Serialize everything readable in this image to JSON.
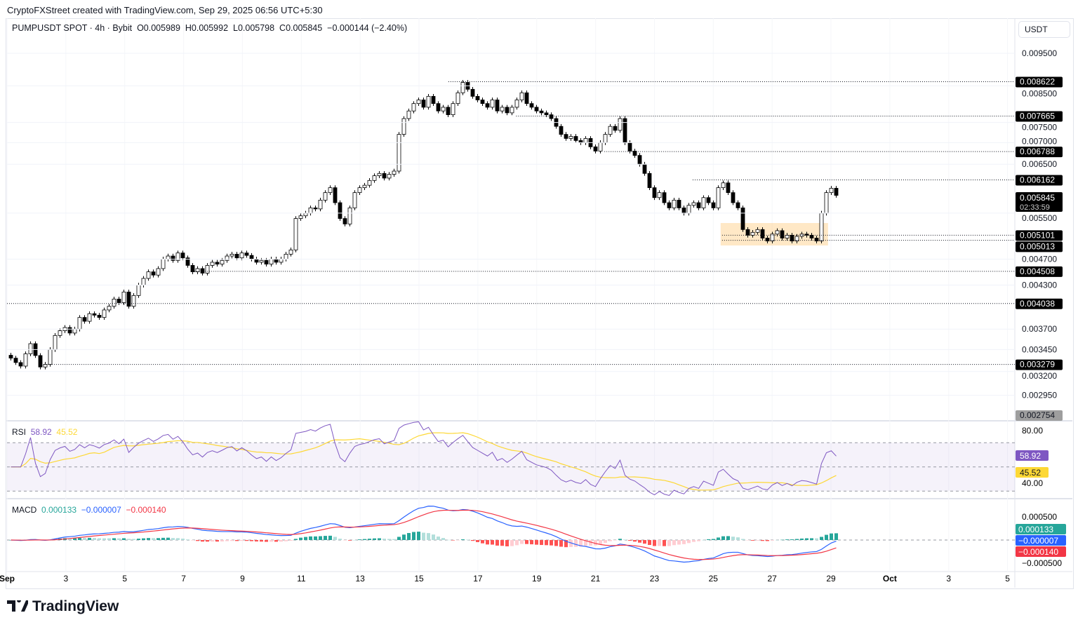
{
  "credit": "CryptoFXStreet created with TradingView.com, Sep 29, 2025 06:56 UTC+5:30",
  "legend": {
    "symbol": "PUMPUSDT SPOT · 4h · Bybit",
    "open": "O0.005989",
    "high": "H0.005992",
    "low": "L0.005798",
    "close": "C0.005845",
    "change": "−0.000144 (−2.40%)"
  },
  "currency": "USDT",
  "price_axis": {
    "scale": "log",
    "ticks": [
      "0.009500",
      "0.008500",
      "0.007500",
      "0.007000",
      "0.006500",
      "0.005500",
      "0.004700",
      "0.004300",
      "0.003700",
      "0.003450",
      "0.003200",
      "0.002950"
    ]
  },
  "levels": [
    {
      "value": 0.008622,
      "label": "0.008622"
    },
    {
      "value": 0.007665,
      "label": "0.007665"
    },
    {
      "value": 0.006788,
      "label": "0.006788"
    },
    {
      "value": 0.006162,
      "label": "0.006162"
    },
    {
      "value": 0.005101,
      "label": "0.005101"
    },
    {
      "value": 0.005013,
      "label": "0.005013"
    },
    {
      "value": 0.004508,
      "label": "0.004508"
    },
    {
      "value": 0.004038,
      "label": "0.004038"
    },
    {
      "value": 0.003279,
      "label": "0.003279"
    }
  ],
  "last_price": {
    "label": "0.005845",
    "countdown": "02:33:59"
  },
  "low_marker": "0.002754",
  "consolidation_zone": {
    "top": 0.005101,
    "bottom": 0.005013,
    "color": "#ffcc80"
  },
  "colors": {
    "up": "#ffffff",
    "down": "#000000",
    "rsi": "#7e57c2",
    "rsi_ma": "#fdd835",
    "macd": "#2962ff",
    "signal": "#f23645",
    "hist_up": "#26a69a",
    "hist_down": "#ff5252"
  },
  "rsi": {
    "label": "RSI",
    "value": "58.92",
    "ma": "45.52",
    "ticks": [
      "80.00",
      "40.00"
    ],
    "bands": [
      70,
      30
    ]
  },
  "macd": {
    "label": "MACD",
    "hist": "0.000133",
    "macd": "−0.000007",
    "signal": "−0.000140",
    "ticks": [
      "0.000500",
      "−0.000500"
    ]
  },
  "x_axis": [
    "Sep",
    "3",
    "5",
    "7",
    "9",
    "11",
    "13",
    "15",
    "17",
    "19",
    "21",
    "23",
    "25",
    "27",
    "29",
    "Oct",
    "3",
    "5"
  ],
  "brand": "TradingView",
  "chart_data": {
    "type": "candlestick",
    "interval": "4h",
    "start": "2025-09-01",
    "closes": [
      0.00335,
      0.0033,
      0.00326,
      0.0034,
      0.00352,
      0.00338,
      0.00325,
      0.00328,
      0.00345,
      0.00362,
      0.00368,
      0.00372,
      0.00365,
      0.0037,
      0.00385,
      0.0038,
      0.0039,
      0.00388,
      0.00385,
      0.00395,
      0.004,
      0.0041,
      0.00405,
      0.0042,
      0.004,
      0.00415,
      0.0043,
      0.0044,
      0.0045,
      0.00445,
      0.00455,
      0.0047,
      0.00475,
      0.00468,
      0.0048,
      0.00472,
      0.0046,
      0.0045,
      0.00455,
      0.00448,
      0.0046,
      0.00465,
      0.00462,
      0.00468,
      0.00475,
      0.00478,
      0.00472,
      0.0048,
      0.00476,
      0.0047,
      0.00465,
      0.00468,
      0.00462,
      0.0047,
      0.00465,
      0.0047,
      0.00478,
      0.00485,
      0.0054,
      0.00545,
      0.0055,
      0.0056,
      0.00558,
      0.00575,
      0.0059,
      0.006,
      0.0057,
      0.0054,
      0.0053,
      0.0056,
      0.0059,
      0.006,
      0.00605,
      0.00615,
      0.00625,
      0.0063,
      0.0062,
      0.00628,
      0.00635,
      0.0072,
      0.0076,
      0.0078,
      0.008,
      0.0081,
      0.0079,
      0.0082,
      0.008,
      0.0078,
      0.0079,
      0.0077,
      0.008,
      0.0083,
      0.0086,
      0.0084,
      0.0082,
      0.0081,
      0.008,
      0.0079,
      0.0081,
      0.0078,
      0.0079,
      0.00775,
      0.0079,
      0.0081,
      0.0083,
      0.008,
      0.0079,
      0.0078,
      0.00775,
      0.0077,
      0.0076,
      0.0074,
      0.0072,
      0.0071,
      0.00715,
      0.00705,
      0.007,
      0.0071,
      0.0069,
      0.0068,
      0.007,
      0.0072,
      0.0074,
      0.0073,
      0.0076,
      0.007,
      0.0068,
      0.0067,
      0.0065,
      0.0063,
      0.006,
      0.0058,
      0.0059,
      0.0057,
      0.0056,
      0.00575,
      0.0056,
      0.0055,
      0.00565,
      0.0057,
      0.0056,
      0.0058,
      0.0057,
      0.0056,
      0.006,
      0.0061,
      0.0059,
      0.0057,
      0.0056,
      0.0052,
      0.0051,
      0.00515,
      0.0052,
      0.00505,
      0.005,
      0.00512,
      0.00518,
      0.00505,
      0.0051,
      0.005,
      0.00508,
      0.00512,
      0.0051,
      0.00505,
      0.005,
      0.0055,
      0.0059,
      0.005989,
      0.005845
    ]
  }
}
